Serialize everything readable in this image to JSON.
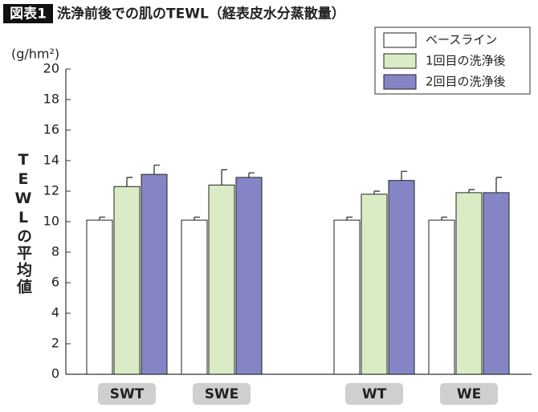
{
  "chart_data": {
    "type": "bar",
    "badge": "図表1",
    "title": "洗浄前後での肌のTEWL（経表皮水分蒸散量）",
    "y_unit": "(g/hm²)",
    "y_label": "TEWLの平均値",
    "categories": [
      "SWT",
      "SWE",
      "WT",
      "WE"
    ],
    "series": [
      {
        "name": "ベースライン",
        "color": "#ffffff",
        "values": [
          10.1,
          10.1,
          10.1,
          10.1
        ],
        "errors": [
          0.2,
          0.2,
          0.2,
          0.2
        ]
      },
      {
        "name": "1回目の洗浄後",
        "color": "#d9ecc6",
        "values": [
          12.3,
          12.4,
          11.8,
          11.9
        ],
        "errors": [
          0.6,
          1.0,
          0.2,
          0.2
        ]
      },
      {
        "name": "2回目の洗浄後",
        "color": "#8585c6",
        "values": [
          13.1,
          12.9,
          12.7,
          11.9
        ],
        "errors": [
          0.6,
          0.3,
          0.6,
          1.0
        ]
      }
    ],
    "ylim": [
      0,
      20
    ],
    "yticks": [
      0,
      2,
      4,
      6,
      8,
      10,
      12,
      14,
      16,
      18,
      20
    ],
    "legend": "upper right"
  }
}
